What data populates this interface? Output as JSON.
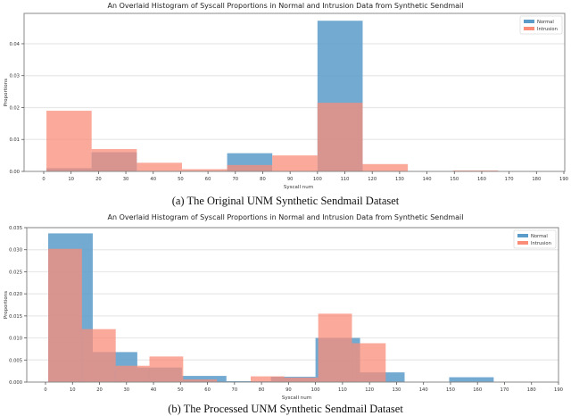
{
  "figures": [
    {
      "title": "An Overlaid Histogram of Syscall Proportions in Normal and Intrusion Data from Synthetic Sendmail",
      "caption": "(a) The Original UNM Synthetic Sendmail Dataset"
    },
    {
      "title": "An Overlaid Histogram of Syscall Proportions in Normal and Intrusion Data from Synthetic Sendmail",
      "caption": "(b) The Processed UNM Synthetic Sendmail Dataset"
    }
  ],
  "colors": {
    "normal": "#5b9bc9",
    "intrusion": "#fa8c78",
    "overlap": "#c47a78",
    "grid": "#e8e8e8",
    "axis": "#555555"
  },
  "chart_data": [
    {
      "type": "bar",
      "title": "An Overlaid Histogram of Syscall Proportions in Normal and Intrusion Data from Synthetic Sendmail",
      "xlabel": "Syscall num",
      "ylabel": "Proportions",
      "xlim": [
        -7,
        190
      ],
      "ylim": [
        0,
        0.0495
      ],
      "xticks": [
        0,
        10,
        20,
        30,
        40,
        50,
        60,
        70,
        80,
        90,
        100,
        110,
        120,
        130,
        140,
        150,
        160,
        170,
        180,
        190
      ],
      "yticks": [
        "0.00",
        "0.01",
        "0.02",
        "0.03",
        "0.04"
      ],
      "ytick_values": [
        0,
        0.01,
        0.02,
        0.03,
        0.04
      ],
      "grid": true,
      "legend_position": "upper right",
      "legend": [
        "Normal",
        "Intrusion"
      ],
      "series": [
        {
          "name": "Normal",
          "bins": [
            {
              "x0": 1,
              "x1": 17.5,
              "value": 0.001
            },
            {
              "x0": 17.5,
              "x1": 34,
              "value": 0.006
            },
            {
              "x0": 34,
              "x1": 50.5,
              "value": 0.0
            },
            {
              "x0": 50.5,
              "x1": 67,
              "value": 0.0
            },
            {
              "x0": 67,
              "x1": 83.5,
              "value": 0.0057
            },
            {
              "x0": 83.5,
              "x1": 100,
              "value": 0.0
            },
            {
              "x0": 100,
              "x1": 116.5,
              "value": 0.0472
            },
            {
              "x0": 116.5,
              "x1": 133,
              "value": 0.0
            },
            {
              "x0": 133,
              "x1": 149.5,
              "value": 0.0
            },
            {
              "x0": 149.5,
              "x1": 166,
              "value": 0.0
            },
            {
              "x0": 166,
              "x1": 182.5,
              "value": 0.0
            }
          ]
        },
        {
          "name": "Intrusion",
          "bins": [
            {
              "x0": 1,
              "x1": 17.5,
              "value": 0.019
            },
            {
              "x0": 17.5,
              "x1": 34,
              "value": 0.007
            },
            {
              "x0": 34,
              "x1": 50.5,
              "value": 0.0027
            },
            {
              "x0": 50.5,
              "x1": 67,
              "value": 0.0007
            },
            {
              "x0": 67,
              "x1": 83.5,
              "value": 0.002
            },
            {
              "x0": 83.5,
              "x1": 100,
              "value": 0.005
            },
            {
              "x0": 100,
              "x1": 116.5,
              "value": 0.0215
            },
            {
              "x0": 116.5,
              "x1": 133,
              "value": 0.0023
            },
            {
              "x0": 133,
              "x1": 149.5,
              "value": 0.0001
            },
            {
              "x0": 149.5,
              "x1": 166,
              "value": 0.0003
            },
            {
              "x0": 166,
              "x1": 182.5,
              "value": 0.0
            }
          ]
        }
      ]
    },
    {
      "type": "bar",
      "title": "An Overlaid Histogram of Syscall Proportions in Normal and Intrusion Data from Synthetic Sendmail",
      "xlabel": "Syscall num",
      "ylabel": "Proportions",
      "xlim": [
        -7,
        190
      ],
      "ylim": [
        0,
        0.035
      ],
      "xticks": [
        0,
        10,
        20,
        30,
        40,
        50,
        60,
        70,
        80,
        90,
        100,
        110,
        120,
        130,
        140,
        150,
        160,
        170,
        180,
        190
      ],
      "yticks": [
        "0.000",
        "0.005",
        "0.010",
        "0.015",
        "0.020",
        "0.025",
        "0.030",
        "0.035"
      ],
      "ytick_values": [
        0,
        0.005,
        0.01,
        0.015,
        0.02,
        0.025,
        0.03,
        0.035
      ],
      "grid": true,
      "legend_position": "upper right",
      "legend": [
        "Normal",
        "Intrusion"
      ],
      "series": [
        {
          "name": "Normal",
          "bins": [
            {
              "x0": 1,
              "x1": 17.5,
              "value": 0.0337
            },
            {
              "x0": 17.5,
              "x1": 34,
              "value": 0.0068
            },
            {
              "x0": 34,
              "x1": 50.5,
              "value": 0.0033
            },
            {
              "x0": 50.5,
              "x1": 67,
              "value": 0.0014
            },
            {
              "x0": 67,
              "x1": 83.5,
              "value": 0.0002
            },
            {
              "x0": 83.5,
              "x1": 100,
              "value": 0.0012
            },
            {
              "x0": 100,
              "x1": 116.5,
              "value": 0.01
            },
            {
              "x0": 116.5,
              "x1": 133,
              "value": 0.0022
            },
            {
              "x0": 133,
              "x1": 149.5,
              "value": 0.0
            },
            {
              "x0": 149.5,
              "x1": 166,
              "value": 0.0011
            },
            {
              "x0": 166,
              "x1": 182.5,
              "value": 0.0
            }
          ],
          "step_detail": [
            {
              "x0": 1,
              "x1": 13,
              "value": 0.0337
            },
            {
              "x0": 13,
              "x1": 17.5,
              "value": 0.0337
            },
            {
              "x0": 17.5,
              "x1": 26,
              "value": 0.0068
            },
            {
              "x0": 26,
              "x1": 34,
              "value": 0.0068
            }
          ]
        },
        {
          "name": "Intrusion",
          "bins": [
            {
              "x0": 1,
              "x1": 13.5,
              "value": 0.0302
            },
            {
              "x0": 13.5,
              "x1": 26,
              "value": 0.012
            },
            {
              "x0": 26,
              "x1": 38.5,
              "value": 0.0037
            },
            {
              "x0": 38.5,
              "x1": 51,
              "value": 0.0058
            },
            {
              "x0": 51,
              "x1": 63.5,
              "value": 0.0006
            },
            {
              "x0": 63.5,
              "x1": 76,
              "value": 0.0
            },
            {
              "x0": 76,
              "x1": 88.5,
              "value": 0.0013
            },
            {
              "x0": 88.5,
              "x1": 101,
              "value": 0.001
            },
            {
              "x0": 101,
              "x1": 113.5,
              "value": 0.0155
            },
            {
              "x0": 113.5,
              "x1": 126,
              "value": 0.0088
            },
            {
              "x0": 126,
              "x1": 138.5,
              "value": 0.0
            }
          ]
        }
      ]
    }
  ]
}
